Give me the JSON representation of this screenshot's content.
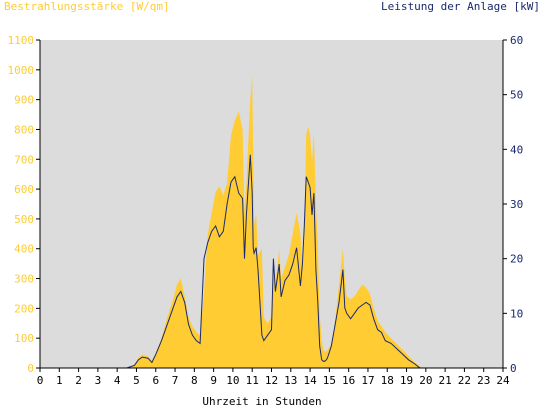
{
  "chart_data": {
    "type": "area",
    "title_left": "Bestrahlungsstärke [W/qm]",
    "title_right": "Leistung der Anlage [kW]",
    "xlabel": "Uhrzeit in Stunden",
    "x_ticks": [
      "0",
      "1",
      "2",
      "3",
      "4",
      "5",
      "6",
      "7",
      "8",
      "9",
      "10",
      "11",
      "12",
      "13",
      "14",
      "15",
      "16",
      "17",
      "18",
      "19",
      "20",
      "21",
      "22",
      "23",
      "24"
    ],
    "y_left_ticks": [
      "0",
      "100",
      "200",
      "300",
      "400",
      "500",
      "600",
      "700",
      "800",
      "900",
      "1000",
      "1100"
    ],
    "y_right_ticks": [
      "0",
      "10",
      "20",
      "30",
      "40",
      "50",
      "60"
    ],
    "xlim": [
      0,
      24
    ],
    "ylim_left": [
      0,
      1100
    ],
    "ylim_right": [
      0,
      60
    ],
    "grid": false,
    "colors": {
      "plot_background": "#dcdcdc",
      "irradiance_fill": "#ffcc33",
      "power_line": "#1a2a6c",
      "left_axis_text": "#ffcc33",
      "right_axis_text": "#1a2a6c",
      "x_axis_text": "#000000"
    },
    "series": [
      {
        "axis": "left",
        "style": "area",
        "x": [
          0,
          4.5,
          4.9,
          5.1,
          5.3,
          5.6,
          5.8,
          6.0,
          6.3,
          6.6,
          6.9,
          7.1,
          7.3,
          7.5,
          7.7,
          7.9,
          8.1,
          8.3,
          8.5,
          8.7,
          8.9,
          9.1,
          9.3,
          9.5,
          9.7,
          9.9,
          10.1,
          10.3,
          10.5,
          10.6,
          10.7,
          10.9,
          11.0,
          11.05,
          11.1,
          11.2,
          11.3,
          11.5,
          11.6,
          11.8,
          12.0,
          12.1,
          12.2,
          12.4,
          12.5,
          12.7,
          12.9,
          13.1,
          13.3,
          13.5,
          13.6,
          13.7,
          13.8,
          13.9,
          14.0,
          14.1,
          14.2,
          14.3,
          14.4,
          14.5,
          14.6,
          14.7,
          14.8,
          14.9,
          15.1,
          15.3,
          15.5,
          15.7,
          15.8,
          15.9,
          16.1,
          16.3,
          16.5,
          16.7,
          16.9,
          17.1,
          17.3,
          17.5,
          17.7,
          17.9,
          18.2,
          18.5,
          18.8,
          19.1,
          19.4,
          19.7,
          20.0,
          20.2,
          24
        ],
        "values": [
          0,
          0,
          10,
          35,
          45,
          40,
          25,
          50,
          100,
          170,
          230,
          280,
          300,
          240,
          170,
          140,
          120,
          110,
          250,
          450,
          520,
          590,
          610,
          580,
          620,
          780,
          830,
          860,
          800,
          520,
          620,
          900,
          980,
          700,
          480,
          520,
          380,
          400,
          170,
          150,
          170,
          380,
          280,
          400,
          300,
          340,
          380,
          450,
          520,
          450,
          330,
          430,
          780,
          810,
          780,
          690,
          790,
          550,
          420,
          180,
          90,
          60,
          55,
          60,
          80,
          160,
          280,
          400,
          300,
          240,
          230,
          240,
          260,
          280,
          270,
          250,
          200,
          160,
          140,
          120,
          100,
          80,
          60,
          40,
          20,
          5,
          0,
          0,
          0
        ]
      },
      {
        "axis": "right",
        "style": "line",
        "x": [
          0,
          4.5,
          4.9,
          5.1,
          5.3,
          5.6,
          5.8,
          6.0,
          6.3,
          6.6,
          6.9,
          7.1,
          7.3,
          7.5,
          7.7,
          7.9,
          8.1,
          8.3,
          8.5,
          8.7,
          8.9,
          9.1,
          9.3,
          9.5,
          9.7,
          9.9,
          10.1,
          10.3,
          10.5,
          10.6,
          10.7,
          10.9,
          11.0,
          11.05,
          11.1,
          11.2,
          11.3,
          11.5,
          11.6,
          11.8,
          12.0,
          12.1,
          12.2,
          12.4,
          12.5,
          12.7,
          12.9,
          13.1,
          13.3,
          13.5,
          13.6,
          13.7,
          13.8,
          13.9,
          14.0,
          14.1,
          14.2,
          14.3,
          14.4,
          14.5,
          14.6,
          14.7,
          14.8,
          14.9,
          15.1,
          15.3,
          15.5,
          15.7,
          15.8,
          15.9,
          16.1,
          16.3,
          16.5,
          16.7,
          16.9,
          17.1,
          17.3,
          17.5,
          17.7,
          17.9,
          18.2,
          18.5,
          18.8,
          19.1,
          19.4,
          19.7,
          20.0,
          20.2,
          24
        ],
        "values": [
          0,
          0,
          0.5,
          1.5,
          2,
          1.8,
          1,
          2.5,
          5,
          8,
          11,
          13,
          14,
          12,
          8,
          6,
          5,
          4.5,
          20,
          23,
          25,
          26,
          24,
          25,
          30,
          34,
          35,
          32,
          31,
          20,
          28,
          39,
          32,
          22,
          21,
          22,
          18,
          6,
          5,
          6,
          7,
          20,
          14,
          19,
          13,
          16,
          17,
          19,
          22,
          15,
          19,
          26,
          35,
          34,
          33,
          28,
          32,
          18,
          12,
          4,
          1.5,
          1.2,
          1.3,
          1.8,
          4,
          8,
          12,
          18,
          11,
          10,
          9,
          10,
          11,
          11.5,
          12,
          11.5,
          9,
          7,
          6.5,
          5,
          4.5,
          3.5,
          2.5,
          1.5,
          0.8,
          0,
          0,
          0,
          0
        ]
      }
    ]
  }
}
